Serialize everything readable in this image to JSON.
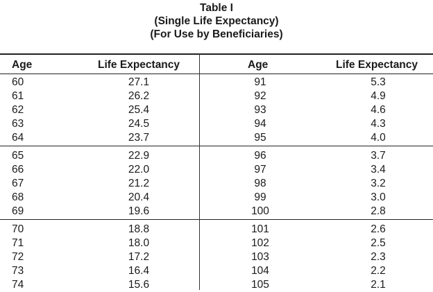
{
  "title": {
    "line1": "Table I",
    "line2": "(Single Life Expectancy)",
    "line3": "(For Use by Beneficiaries)"
  },
  "headers": {
    "age_left": "Age",
    "le_left": "Life Expectancy",
    "age_right": "Age",
    "le_right": "Life Expectancy"
  },
  "rows": [
    {
      "age_l": "60",
      "le_l": "27.1",
      "age_r": "91",
      "le_r": "5.3"
    },
    {
      "age_l": "61",
      "le_l": "26.2",
      "age_r": "92",
      "le_r": "4.9"
    },
    {
      "age_l": "62",
      "le_l": "25.4",
      "age_r": "93",
      "le_r": "4.6"
    },
    {
      "age_l": "63",
      "le_l": "24.5",
      "age_r": "94",
      "le_r": "4.3"
    },
    {
      "age_l": "64",
      "le_l": "23.7",
      "age_r": "95",
      "le_r": "4.0"
    },
    {
      "age_l": "65",
      "le_l": "22.9",
      "age_r": "96",
      "le_r": "3.7"
    },
    {
      "age_l": "66",
      "le_l": "22.0",
      "age_r": "97",
      "le_r": "3.4"
    },
    {
      "age_l": "67",
      "le_l": "21.2",
      "age_r": "98",
      "le_r": "3.2"
    },
    {
      "age_l": "68",
      "le_l": "20.4",
      "age_r": "99",
      "le_r": "3.0"
    },
    {
      "age_l": "69",
      "le_l": "19.6",
      "age_r": "100",
      "le_r": "2.8"
    },
    {
      "age_l": "70",
      "le_l": "18.8",
      "age_r": "101",
      "le_r": "2.6"
    },
    {
      "age_l": "71",
      "le_l": "18.0",
      "age_r": "102",
      "le_r": "2.5"
    },
    {
      "age_l": "72",
      "le_l": "17.2",
      "age_r": "103",
      "le_r": "2.3"
    },
    {
      "age_l": "73",
      "le_l": "16.4",
      "age_r": "104",
      "le_r": "2.2"
    },
    {
      "age_l": "74",
      "le_l": "15.6",
      "age_r": "105",
      "le_r": "2.1"
    }
  ]
}
